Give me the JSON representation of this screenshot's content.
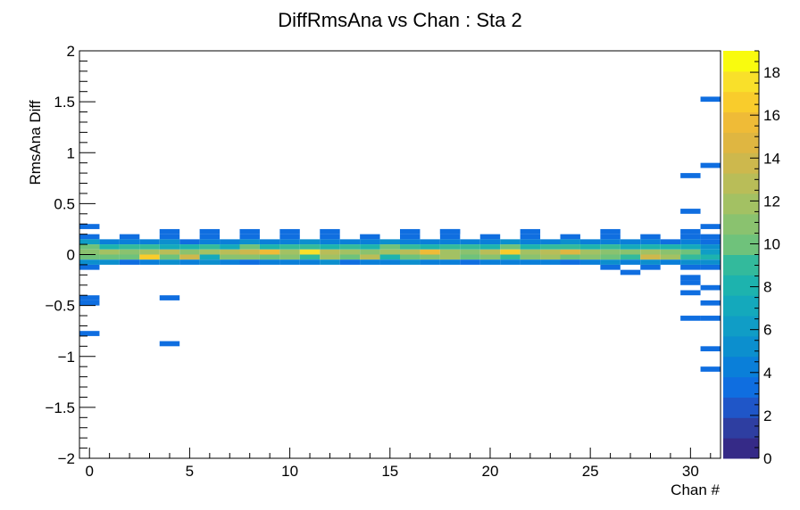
{
  "chart_data": {
    "type": "heatmap",
    "title": "DiffRmsAna vs Chan : Sta 2",
    "xlabel": "Chan #",
    "ylabel": "RmsAna Diff",
    "xlim": [
      -0.5,
      31.5
    ],
    "ylim": [
      -2,
      2
    ],
    "x_ticks": [
      0,
      5,
      10,
      15,
      20,
      25,
      30
    ],
    "x_tick_labels": [
      "0",
      "5",
      "10",
      "15",
      "20",
      "25",
      "30"
    ],
    "y_ticks": [
      -2,
      -1.5,
      -1,
      -0.5,
      0,
      0.5,
      1,
      1.5,
      2
    ],
    "y_tick_labels": [
      "−2",
      "−1.5",
      "−1",
      "−0.5",
      "0",
      "0.5",
      "1",
      "1.5",
      "2"
    ],
    "z_range": [
      0,
      19
    ],
    "z_ticks": [
      0,
      2,
      4,
      6,
      8,
      10,
      12,
      14,
      16,
      18
    ],
    "z_tick_labels": [
      "0",
      "2",
      "4",
      "6",
      "8",
      "10",
      "12",
      "14",
      "16",
      "18"
    ],
    "colorbar_levels": 20,
    "palette": [
      "#352a87",
      "#2e3ea1",
      "#1f56c8",
      "#0f6ee0",
      "#0a7fd9",
      "#0c8fce",
      "#109dc6",
      "#14a9bc",
      "#1db3ae",
      "#33ba9c",
      "#52bf8a",
      "#6fc27b",
      "#8ac26f",
      "#a3c163",
      "#b9bd58",
      "#cdb84d",
      "#dfb641",
      "#efbb37",
      "#f9cc2c",
      "#f9e02a",
      "#f9fb0e"
    ],
    "y_bin_width": 0.05,
    "cells": [
      {
        "x": 0,
        "y": 0.275,
        "z": 3
      },
      {
        "x": 0,
        "y": 0.175,
        "z": 3
      },
      {
        "x": 0,
        "y": 0.125,
        "z": 6
      },
      {
        "x": 0,
        "y": 0.075,
        "z": 10
      },
      {
        "x": 0,
        "y": 0.025,
        "z": 11
      },
      {
        "x": 0,
        "y": -0.025,
        "z": 10
      },
      {
        "x": 0,
        "y": -0.075,
        "z": 5
      },
      {
        "x": 0,
        "y": -0.125,
        "z": 3
      },
      {
        "x": 0,
        "y": -0.425,
        "z": 3
      },
      {
        "x": 0,
        "y": -0.475,
        "z": 3
      },
      {
        "x": 0,
        "y": -0.775,
        "z": 3
      },
      {
        "x": 1,
        "y": 0.125,
        "z": 4
      },
      {
        "x": 1,
        "y": 0.075,
        "z": 8
      },
      {
        "x": 1,
        "y": 0.025,
        "z": 12
      },
      {
        "x": 1,
        "y": -0.025,
        "z": 10
      },
      {
        "x": 1,
        "y": -0.075,
        "z": 5
      },
      {
        "x": 2,
        "y": 0.175,
        "z": 3
      },
      {
        "x": 2,
        "y": 0.125,
        "z": 4
      },
      {
        "x": 2,
        "y": 0.075,
        "z": 9
      },
      {
        "x": 2,
        "y": 0.025,
        "z": 11
      },
      {
        "x": 2,
        "y": -0.025,
        "z": 10
      },
      {
        "x": 2,
        "y": -0.075,
        "z": 3
      },
      {
        "x": 3,
        "y": 0.125,
        "z": 4
      },
      {
        "x": 3,
        "y": 0.075,
        "z": 9
      },
      {
        "x": 3,
        "y": 0.025,
        "z": 12
      },
      {
        "x": 3,
        "y": -0.025,
        "z": 17
      },
      {
        "x": 3,
        "y": -0.075,
        "z": 4
      },
      {
        "x": 4,
        "y": 0.225,
        "z": 3
      },
      {
        "x": 4,
        "y": 0.175,
        "z": 3
      },
      {
        "x": 4,
        "y": 0.125,
        "z": 5
      },
      {
        "x": 4,
        "y": 0.075,
        "z": 7
      },
      {
        "x": 4,
        "y": 0.025,
        "z": 13
      },
      {
        "x": 4,
        "y": -0.025,
        "z": 10
      },
      {
        "x": 4,
        "y": -0.075,
        "z": 5
      },
      {
        "x": 4,
        "y": -0.425,
        "z": 3
      },
      {
        "x": 4,
        "y": -0.875,
        "z": 3
      },
      {
        "x": 5,
        "y": 0.125,
        "z": 3
      },
      {
        "x": 5,
        "y": 0.075,
        "z": 8
      },
      {
        "x": 5,
        "y": 0.025,
        "z": 11
      },
      {
        "x": 5,
        "y": -0.025,
        "z": 14
      },
      {
        "x": 5,
        "y": -0.075,
        "z": 4
      },
      {
        "x": 6,
        "y": 0.225,
        "z": 3
      },
      {
        "x": 6,
        "y": 0.175,
        "z": 3
      },
      {
        "x": 6,
        "y": 0.125,
        "z": 4
      },
      {
        "x": 6,
        "y": 0.075,
        "z": 9
      },
      {
        "x": 6,
        "y": 0.025,
        "z": 12
      },
      {
        "x": 6,
        "y": -0.025,
        "z": 7
      },
      {
        "x": 6,
        "y": -0.075,
        "z": 5
      },
      {
        "x": 7,
        "y": 0.125,
        "z": 4
      },
      {
        "x": 7,
        "y": 0.075,
        "z": 7
      },
      {
        "x": 7,
        "y": 0.025,
        "z": 13
      },
      {
        "x": 7,
        "y": -0.025,
        "z": 11
      },
      {
        "x": 7,
        "y": -0.075,
        "z": 4
      },
      {
        "x": 8,
        "y": 0.225,
        "z": 3
      },
      {
        "x": 8,
        "y": 0.175,
        "z": 3
      },
      {
        "x": 8,
        "y": 0.125,
        "z": 5
      },
      {
        "x": 8,
        "y": 0.075,
        "z": 10
      },
      {
        "x": 8,
        "y": 0.025,
        "z": 14
      },
      {
        "x": 8,
        "y": -0.025,
        "z": 11
      },
      {
        "x": 8,
        "y": -0.075,
        "z": 3
      },
      {
        "x": 9,
        "y": 0.125,
        "z": 4
      },
      {
        "x": 9,
        "y": 0.075,
        "z": 8
      },
      {
        "x": 9,
        "y": 0.025,
        "z": 16
      },
      {
        "x": 9,
        "y": -0.025,
        "z": 10
      },
      {
        "x": 9,
        "y": -0.075,
        "z": 4
      },
      {
        "x": 10,
        "y": 0.225,
        "z": 3
      },
      {
        "x": 10,
        "y": 0.175,
        "z": 3
      },
      {
        "x": 10,
        "y": 0.125,
        "z": 4
      },
      {
        "x": 10,
        "y": 0.075,
        "z": 9
      },
      {
        "x": 10,
        "y": 0.025,
        "z": 12
      },
      {
        "x": 10,
        "y": -0.025,
        "z": 11
      },
      {
        "x": 10,
        "y": -0.075,
        "z": 4
      },
      {
        "x": 11,
        "y": 0.125,
        "z": 5
      },
      {
        "x": 11,
        "y": 0.075,
        "z": 9
      },
      {
        "x": 11,
        "y": 0.025,
        "z": 18
      },
      {
        "x": 11,
        "y": -0.025,
        "z": 9
      },
      {
        "x": 11,
        "y": -0.075,
        "z": 4
      },
      {
        "x": 12,
        "y": 0.225,
        "z": 3
      },
      {
        "x": 12,
        "y": 0.175,
        "z": 3
      },
      {
        "x": 12,
        "y": 0.125,
        "z": 4
      },
      {
        "x": 12,
        "y": 0.075,
        "z": 8
      },
      {
        "x": 12,
        "y": 0.025,
        "z": 13
      },
      {
        "x": 12,
        "y": -0.025,
        "z": 12
      },
      {
        "x": 12,
        "y": -0.075,
        "z": 5
      },
      {
        "x": 13,
        "y": 0.125,
        "z": 4
      },
      {
        "x": 13,
        "y": 0.075,
        "z": 9
      },
      {
        "x": 13,
        "y": 0.025,
        "z": 12
      },
      {
        "x": 13,
        "y": -0.025,
        "z": 10
      },
      {
        "x": 13,
        "y": -0.075,
        "z": 3
      },
      {
        "x": 14,
        "y": 0.175,
        "z": 3
      },
      {
        "x": 14,
        "y": 0.125,
        "z": 4
      },
      {
        "x": 14,
        "y": 0.075,
        "z": 8
      },
      {
        "x": 14,
        "y": 0.025,
        "z": 11
      },
      {
        "x": 14,
        "y": -0.025,
        "z": 13
      },
      {
        "x": 14,
        "y": -0.075,
        "z": 4
      },
      {
        "x": 15,
        "y": 0.125,
        "z": 5
      },
      {
        "x": 15,
        "y": 0.075,
        "z": 10
      },
      {
        "x": 15,
        "y": 0.025,
        "z": 12
      },
      {
        "x": 15,
        "y": -0.025,
        "z": 8
      },
      {
        "x": 15,
        "y": -0.075,
        "z": 4
      },
      {
        "x": 16,
        "y": 0.225,
        "z": 3
      },
      {
        "x": 16,
        "y": 0.175,
        "z": 3
      },
      {
        "x": 16,
        "y": 0.125,
        "z": 4
      },
      {
        "x": 16,
        "y": 0.075,
        "z": 9
      },
      {
        "x": 16,
        "y": 0.025,
        "z": 13
      },
      {
        "x": 16,
        "y": -0.025,
        "z": 10
      },
      {
        "x": 16,
        "y": -0.075,
        "z": 5
      },
      {
        "x": 17,
        "y": 0.125,
        "z": 4
      },
      {
        "x": 17,
        "y": 0.075,
        "z": 8
      },
      {
        "x": 17,
        "y": 0.025,
        "z": 16
      },
      {
        "x": 17,
        "y": -0.025,
        "z": 11
      },
      {
        "x": 17,
        "y": -0.075,
        "z": 4
      },
      {
        "x": 18,
        "y": 0.225,
        "z": 3
      },
      {
        "x": 18,
        "y": 0.175,
        "z": 3
      },
      {
        "x": 18,
        "y": 0.125,
        "z": 4
      },
      {
        "x": 18,
        "y": 0.075,
        "z": 9
      },
      {
        "x": 18,
        "y": 0.025,
        "z": 12
      },
      {
        "x": 18,
        "y": -0.025,
        "z": 12
      },
      {
        "x": 18,
        "y": -0.075,
        "z": 4
      },
      {
        "x": 19,
        "y": 0.125,
        "z": 4
      },
      {
        "x": 19,
        "y": 0.075,
        "z": 9
      },
      {
        "x": 19,
        "y": 0.025,
        "z": 11
      },
      {
        "x": 19,
        "y": -0.025,
        "z": 10
      },
      {
        "x": 19,
        "y": -0.075,
        "z": 3
      },
      {
        "x": 20,
        "y": 0.175,
        "z": 3
      },
      {
        "x": 20,
        "y": 0.125,
        "z": 4
      },
      {
        "x": 20,
        "y": 0.075,
        "z": 8
      },
      {
        "x": 20,
        "y": 0.025,
        "z": 13
      },
      {
        "x": 20,
        "y": -0.025,
        "z": 11
      },
      {
        "x": 20,
        "y": -0.075,
        "z": 4
      },
      {
        "x": 21,
        "y": 0.125,
        "z": 5
      },
      {
        "x": 21,
        "y": 0.075,
        "z": 10
      },
      {
        "x": 21,
        "y": 0.025,
        "z": 17
      },
      {
        "x": 21,
        "y": -0.025,
        "z": 9
      },
      {
        "x": 21,
        "y": -0.075,
        "z": 4
      },
      {
        "x": 22,
        "y": 0.225,
        "z": 3
      },
      {
        "x": 22,
        "y": 0.175,
        "z": 3
      },
      {
        "x": 22,
        "y": 0.125,
        "z": 4
      },
      {
        "x": 22,
        "y": 0.075,
        "z": 8
      },
      {
        "x": 22,
        "y": 0.025,
        "z": 12
      },
      {
        "x": 22,
        "y": -0.025,
        "z": 11
      },
      {
        "x": 22,
        "y": -0.075,
        "z": 4
      },
      {
        "x": 23,
        "y": 0.125,
        "z": 4
      },
      {
        "x": 23,
        "y": 0.075,
        "z": 9
      },
      {
        "x": 23,
        "y": 0.025,
        "z": 13
      },
      {
        "x": 23,
        "y": -0.025,
        "z": 12
      },
      {
        "x": 23,
        "y": -0.075,
        "z": 4
      },
      {
        "x": 24,
        "y": 0.175,
        "z": 3
      },
      {
        "x": 24,
        "y": 0.125,
        "z": 5
      },
      {
        "x": 24,
        "y": 0.075,
        "z": 9
      },
      {
        "x": 24,
        "y": 0.025,
        "z": 15
      },
      {
        "x": 24,
        "y": -0.025,
        "z": 10
      },
      {
        "x": 24,
        "y": -0.075,
        "z": 3
      },
      {
        "x": 25,
        "y": 0.125,
        "z": 4
      },
      {
        "x": 25,
        "y": 0.075,
        "z": 8
      },
      {
        "x": 25,
        "y": 0.025,
        "z": 12
      },
      {
        "x": 25,
        "y": -0.025,
        "z": 11
      },
      {
        "x": 25,
        "y": -0.075,
        "z": 4
      },
      {
        "x": 26,
        "y": 0.225,
        "z": 3
      },
      {
        "x": 26,
        "y": 0.175,
        "z": 3
      },
      {
        "x": 26,
        "y": 0.125,
        "z": 4
      },
      {
        "x": 26,
        "y": 0.075,
        "z": 9
      },
      {
        "x": 26,
        "y": 0.025,
        "z": 11
      },
      {
        "x": 26,
        "y": -0.025,
        "z": 10
      },
      {
        "x": 26,
        "y": -0.075,
        "z": 5
      },
      {
        "x": 26,
        "y": -0.125,
        "z": 3
      },
      {
        "x": 27,
        "y": 0.125,
        "z": 4
      },
      {
        "x": 27,
        "y": 0.075,
        "z": 7
      },
      {
        "x": 27,
        "y": 0.025,
        "z": 11
      },
      {
        "x": 27,
        "y": -0.025,
        "z": 9
      },
      {
        "x": 27,
        "y": -0.075,
        "z": 4
      },
      {
        "x": 27,
        "y": -0.175,
        "z": 3
      },
      {
        "x": 28,
        "y": 0.175,
        "z": 3
      },
      {
        "x": 28,
        "y": 0.125,
        "z": 4
      },
      {
        "x": 28,
        "y": 0.075,
        "z": 8
      },
      {
        "x": 28,
        "y": 0.025,
        "z": 12
      },
      {
        "x": 28,
        "y": -0.025,
        "z": 14
      },
      {
        "x": 28,
        "y": -0.075,
        "z": 5
      },
      {
        "x": 28,
        "y": -0.125,
        "z": 3
      },
      {
        "x": 29,
        "y": 0.125,
        "z": 3
      },
      {
        "x": 29,
        "y": 0.075,
        "z": 8
      },
      {
        "x": 29,
        "y": 0.025,
        "z": 11
      },
      {
        "x": 29,
        "y": -0.025,
        "z": 12
      },
      {
        "x": 29,
        "y": -0.075,
        "z": 4
      },
      {
        "x": 30,
        "y": 0.775,
        "z": 3
      },
      {
        "x": 30,
        "y": 0.425,
        "z": 3
      },
      {
        "x": 30,
        "y": 0.225,
        "z": 3
      },
      {
        "x": 30,
        "y": 0.175,
        "z": 3
      },
      {
        "x": 30,
        "y": 0.125,
        "z": 4
      },
      {
        "x": 30,
        "y": 0.075,
        "z": 7
      },
      {
        "x": 30,
        "y": 0.025,
        "z": 10
      },
      {
        "x": 30,
        "y": -0.025,
        "z": 9
      },
      {
        "x": 30,
        "y": -0.075,
        "z": 5
      },
      {
        "x": 30,
        "y": -0.125,
        "z": 3
      },
      {
        "x": 30,
        "y": -0.225,
        "z": 3
      },
      {
        "x": 30,
        "y": -0.275,
        "z": 3
      },
      {
        "x": 30,
        "y": -0.375,
        "z": 3
      },
      {
        "x": 30,
        "y": -0.625,
        "z": 3
      },
      {
        "x": 31,
        "y": 1.525,
        "z": 3
      },
      {
        "x": 31,
        "y": 0.875,
        "z": 3
      },
      {
        "x": 31,
        "y": 0.275,
        "z": 3
      },
      {
        "x": 31,
        "y": 0.175,
        "z": 3
      },
      {
        "x": 31,
        "y": 0.125,
        "z": 3
      },
      {
        "x": 31,
        "y": 0.075,
        "z": 5
      },
      {
        "x": 31,
        "y": 0.025,
        "z": 6
      },
      {
        "x": 31,
        "y": -0.025,
        "z": 8
      },
      {
        "x": 31,
        "y": -0.075,
        "z": 5
      },
      {
        "x": 31,
        "y": -0.125,
        "z": 3
      },
      {
        "x": 31,
        "y": -0.325,
        "z": 3
      },
      {
        "x": 31,
        "y": -0.475,
        "z": 3
      },
      {
        "x": 31,
        "y": -0.625,
        "z": 3
      },
      {
        "x": 31,
        "y": -0.925,
        "z": 3
      },
      {
        "x": 31,
        "y": -1.125,
        "z": 3
      }
    ],
    "extra_segments": [
      {
        "x": 18,
        "y": 0.225,
        "z": 3
      }
    ],
    "grid": false,
    "legend": "none"
  }
}
